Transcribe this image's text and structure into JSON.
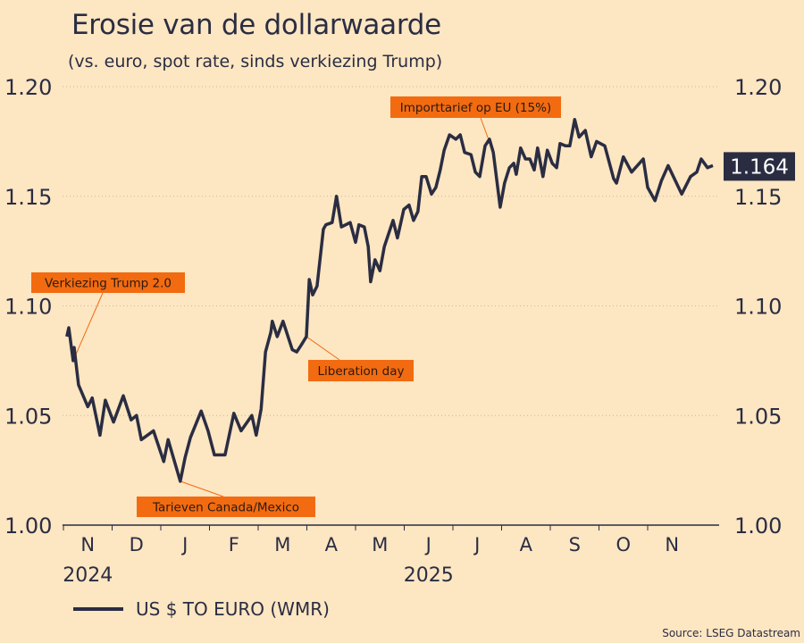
{
  "title": "Erosie van de dollarwaarde",
  "subtitle": "(vs. euro, spot rate, sinds verkiezing Trump)",
  "source": "Source: LSEG Datastream",
  "colors": {
    "background": "#fde6c2",
    "line": "#2a2d42",
    "annotation": "#f26b11",
    "grid": "#c9b89a"
  },
  "chart_data": {
    "type": "line",
    "title": "Erosie van de dollarwaarde",
    "xlabel": "",
    "ylabel": "",
    "x_unit": "months since 1 Nov 2024",
    "ylim": [
      1.0,
      1.2
    ],
    "xlim": [
      0,
      13.5
    ],
    "grid": true,
    "y_ticks": [
      "1.00",
      "1.05",
      "1.10",
      "1.15",
      "1.20"
    ],
    "y_tick_values": [
      1.0,
      1.05,
      1.1,
      1.15,
      1.2
    ],
    "x_ticks": [
      "N",
      "D",
      "J",
      "F",
      "M",
      "A",
      "M",
      "J",
      "J",
      "A",
      "S",
      "O",
      "N"
    ],
    "year_labels": [
      {
        "label": "2024",
        "month": 0.5
      },
      {
        "label": "2025",
        "month": 7.5
      }
    ],
    "legend": {
      "placement": "bottom-left",
      "entries": [
        "US $ TO EURO (WMR)"
      ]
    },
    "last_value_label": "1.164",
    "series": [
      {
        "name": "US $ TO EURO (WMR)",
        "x": [
          0.07,
          0.11,
          0.2,
          0.22,
          0.31,
          0.5,
          0.59,
          0.75,
          0.86,
          1.03,
          1.23,
          1.39,
          1.5,
          1.6,
          1.85,
          2.06,
          2.15,
          2.4,
          2.5,
          2.61,
          2.83,
          2.97,
          3.1,
          3.32,
          3.5,
          3.65,
          3.87,
          3.96,
          4.06,
          4.15,
          4.26,
          4.29,
          4.39,
          4.51,
          4.7,
          4.79,
          4.88,
          4.99,
          5.05,
          5.12,
          5.21,
          5.34,
          5.39,
          5.52,
          5.61,
          5.71,
          5.89,
          6.0,
          6.07,
          6.18,
          6.26,
          6.31,
          6.4,
          6.5,
          6.59,
          6.77,
          6.86,
          6.99,
          7.1,
          7.19,
          7.28,
          7.36,
          7.45,
          7.56,
          7.65,
          7.74,
          7.82,
          7.93,
          8.06,
          8.15,
          8.24,
          8.37,
          8.46,
          8.55,
          8.66,
          8.75,
          8.83,
          8.97,
          9.06,
          9.16,
          9.25,
          9.3,
          9.39,
          9.49,
          9.58,
          9.67,
          9.74,
          9.85,
          9.94,
          10.04,
          10.13,
          10.2,
          10.31,
          10.4,
          10.5,
          10.59,
          10.72,
          10.84,
          10.95,
          11.12,
          11.3,
          11.36,
          11.5,
          11.67,
          11.91,
          12.0,
          12.15,
          12.28,
          12.42,
          12.7,
          12.88,
          13.01,
          13.1,
          13.23,
          13.34
        ],
        "values": [
          1.086,
          1.09,
          1.075,
          1.081,
          1.064,
          1.054,
          1.058,
          1.041,
          1.057,
          1.047,
          1.059,
          1.048,
          1.05,
          1.039,
          1.043,
          1.029,
          1.039,
          1.02,
          1.031,
          1.04,
          1.052,
          1.043,
          1.032,
          1.032,
          1.051,
          1.043,
          1.05,
          1.041,
          1.053,
          1.079,
          1.088,
          1.093,
          1.086,
          1.093,
          1.08,
          1.079,
          1.082,
          1.086,
          1.112,
          1.105,
          1.109,
          1.135,
          1.137,
          1.138,
          1.15,
          1.136,
          1.138,
          1.129,
          1.137,
          1.136,
          1.127,
          1.111,
          1.121,
          1.116,
          1.127,
          1.139,
          1.131,
          1.144,
          1.146,
          1.139,
          1.143,
          1.159,
          1.159,
          1.151,
          1.154,
          1.162,
          1.171,
          1.178,
          1.176,
          1.178,
          1.17,
          1.169,
          1.161,
          1.159,
          1.173,
          1.176,
          1.17,
          1.145,
          1.156,
          1.163,
          1.165,
          1.16,
          1.172,
          1.167,
          1.167,
          1.162,
          1.172,
          1.159,
          1.171,
          1.165,
          1.163,
          1.174,
          1.173,
          1.173,
          1.185,
          1.177,
          1.18,
          1.168,
          1.175,
          1.173,
          1.158,
          1.156,
          1.168,
          1.161,
          1.167,
          1.154,
          1.148,
          1.157,
          1.164,
          1.151,
          1.159,
          1.161,
          1.167,
          1.163,
          1.164
        ]
      }
    ],
    "annotations": [
      {
        "label": "Verkiezing Trump 2.0",
        "point_index": 2
      },
      {
        "label": "Tarieven Canada/Mexico",
        "point_index": 17
      },
      {
        "label": "Liberation day",
        "point_index": 37
      },
      {
        "label": "Importtarief op EU (15%)",
        "point_index": 76
      }
    ]
  }
}
